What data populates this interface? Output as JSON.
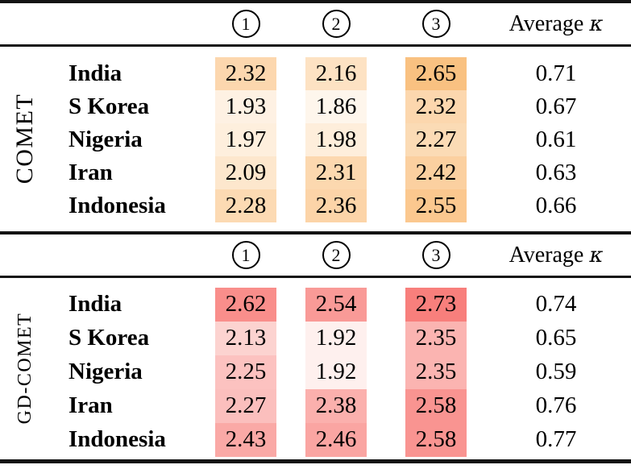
{
  "sections": [
    {
      "label": "COMET",
      "header": {
        "col1": "1",
        "col2": "2",
        "col3": "3",
        "average_word": "Average",
        "average_symbol": "κ"
      },
      "rows": [
        {
          "country": "India",
          "c1": {
            "v": "2.32",
            "bg": "#FCD7AE"
          },
          "c2": {
            "v": "2.16",
            "bg": "#FDE2C3"
          },
          "c3": {
            "v": "2.65",
            "bg": "#F9C181"
          },
          "k": "0.71"
        },
        {
          "country": "S Korea",
          "c1": {
            "v": "1.93",
            "bg": "#FEF1E3"
          },
          "c2": {
            "v": "1.86",
            "bg": "#FEF6EC"
          },
          "c3": {
            "v": "2.32",
            "bg": "#FCD7AE"
          },
          "k": "0.67"
        },
        {
          "country": "Nigeria",
          "c1": {
            "v": "1.97",
            "bg": "#FEEFDD"
          },
          "c2": {
            "v": "1.98",
            "bg": "#FEEEDB"
          },
          "c3": {
            "v": "2.27",
            "bg": "#FBDBB5"
          },
          "k": "0.61"
        },
        {
          "country": "Iran",
          "c1": {
            "v": "2.09",
            "bg": "#FDE7CD"
          },
          "c2": {
            "v": "2.31",
            "bg": "#FCD8AF"
          },
          "c3": {
            "v": "2.42",
            "bg": "#FBD0A0"
          },
          "k": "0.63"
        },
        {
          "country": "Indonesia",
          "c1": {
            "v": "2.28",
            "bg": "#FCDAB3"
          },
          "c2": {
            "v": "2.36",
            "bg": "#FCD4A8"
          },
          "c3": {
            "v": "2.55",
            "bg": "#FBC88F"
          },
          "k": "0.66"
        }
      ]
    },
    {
      "label": "GD-COMET",
      "header": {
        "col1": "1",
        "col2": "2",
        "col3": "3",
        "average_word": "Average",
        "average_symbol": "κ"
      },
      "rows": [
        {
          "country": "India",
          "c1": {
            "v": "2.62",
            "bg": "#F98E8B"
          },
          "c2": {
            "v": "2.54",
            "bg": "#F99A97"
          },
          "c3": {
            "v": "2.73",
            "bg": "#F87F7C"
          },
          "k": "0.74"
        },
        {
          "country": "S Korea",
          "c1": {
            "v": "2.13",
            "bg": "#FCD3D0"
          },
          "c2": {
            "v": "1.92",
            "bg": "#FEF0EE"
          },
          "c3": {
            "v": "2.35",
            "bg": "#FBB4B1"
          },
          "k": "0.65"
        },
        {
          "country": "Nigeria",
          "c1": {
            "v": "2.25",
            "bg": "#FCC2C0"
          },
          "c2": {
            "v": "1.92",
            "bg": "#FEF0EE"
          },
          "c3": {
            "v": "2.35",
            "bg": "#FBB4B1"
          },
          "k": "0.59"
        },
        {
          "country": "Iran",
          "c1": {
            "v": "2.27",
            "bg": "#FBBFBD"
          },
          "c2": {
            "v": "2.38",
            "bg": "#FBB0AD"
          },
          "c3": {
            "v": "2.58",
            "bg": "#F99491"
          },
          "k": "0.76"
        },
        {
          "country": "Indonesia",
          "c1": {
            "v": "2.43",
            "bg": "#FAA9A6"
          },
          "c2": {
            "v": "2.46",
            "bg": "#FAA5A2"
          },
          "c3": {
            "v": "2.58",
            "bg": "#F99491"
          },
          "k": "0.77"
        }
      ]
    }
  ],
  "chart_data": [
    {
      "type": "heatmap",
      "title": "COMET",
      "rows": [
        "India",
        "S Korea",
        "Nigeria",
        "Iran",
        "Indonesia"
      ],
      "columns": [
        "1",
        "2",
        "3"
      ],
      "values": [
        [
          2.32,
          2.16,
          2.65
        ],
        [
          1.93,
          1.86,
          2.32
        ],
        [
          1.97,
          1.98,
          2.27
        ],
        [
          2.09,
          2.31,
          2.42
        ],
        [
          2.28,
          2.36,
          2.55
        ]
      ],
      "average_kappa": [
        0.71,
        0.67,
        0.61,
        0.63,
        0.66
      ],
      "average_kappa_label": "Average κ",
      "colormap": "light-oranges",
      "value_range": [
        1.86,
        2.65
      ]
    },
    {
      "type": "heatmap",
      "title": "GD-COMET",
      "rows": [
        "India",
        "S Korea",
        "Nigeria",
        "Iran",
        "Indonesia"
      ],
      "columns": [
        "1",
        "2",
        "3"
      ],
      "values": [
        [
          2.62,
          2.54,
          2.73
        ],
        [
          2.13,
          1.92,
          2.35
        ],
        [
          2.25,
          1.92,
          2.35
        ],
        [
          2.27,
          2.38,
          2.58
        ],
        [
          2.43,
          2.46,
          2.58
        ]
      ],
      "average_kappa": [
        0.74,
        0.65,
        0.59,
        0.76,
        0.77
      ],
      "average_kappa_label": "Average κ",
      "colormap": "light-reds",
      "value_range": [
        1.92,
        2.73
      ]
    }
  ]
}
